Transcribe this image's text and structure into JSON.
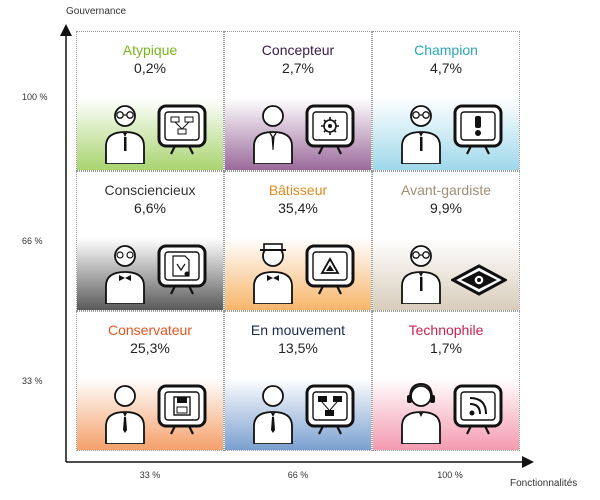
{
  "axes": {
    "y_title": "Gouvernance",
    "x_title": "Fonctionnalités",
    "y_ticks": [
      "100 %",
      "66 %",
      "33 %"
    ],
    "x_ticks": [
      "33 %",
      "66 %",
      "100 %"
    ]
  },
  "cells": [
    {
      "name": "Atypique",
      "value": "0,2%",
      "name_color": "#7ab51d",
      "fill_color": "#a8d46f",
      "figure": "person-glasses-icon",
      "device": "tablet-flowchart-icon"
    },
    {
      "name": "Concepteur",
      "value": "2,7%",
      "name_color": "#3a1a4a",
      "fill_color": "#9b6a9b",
      "figure": "person-bald-icon",
      "device": "tablet-gear-icon"
    },
    {
      "name": "Champion",
      "value": "4,7%",
      "name_color": "#2aa8b8",
      "fill_color": "#9ed8ea",
      "figure": "person-glasses-icon",
      "device": "tablet-alert-icon"
    },
    {
      "name": "Consciencieux",
      "value": "6,6%",
      "name_color": "#333333",
      "fill_color": "#5a5a5a",
      "figure": "person-bowtie-icon",
      "device": "tablet-document-icon"
    },
    {
      "name": "Bâtisseur",
      "value": "35,4%",
      "name_color": "#e08a1e",
      "fill_color": "#f7b56a",
      "figure": "person-hat-icon",
      "device": "tablet-triangle-icon"
    },
    {
      "name": "Avant-gardiste",
      "value": "9,9%",
      "name_color": "#a08e78",
      "fill_color": "#d9cdbc",
      "figure": "person-glasses-icon",
      "device": "tablet-flat-icon"
    },
    {
      "name": "Conservateur",
      "value": "25,3%",
      "name_color": "#e0561e",
      "fill_color": "#f5a06a",
      "figure": "person-tie-icon",
      "device": "tablet-disk-icon"
    },
    {
      "name": "En mouvement",
      "value": "13,5%",
      "name_color": "#1a2a4a",
      "fill_color": "#7a9fd0",
      "figure": "person-tie-icon",
      "device": "tablet-network-icon"
    },
    {
      "name": "Technophile",
      "value": "1,7%",
      "name_color": "#c8214f",
      "fill_color": "#f49ab0",
      "figure": "person-headset-icon",
      "device": "tablet-rss-icon"
    }
  ]
}
